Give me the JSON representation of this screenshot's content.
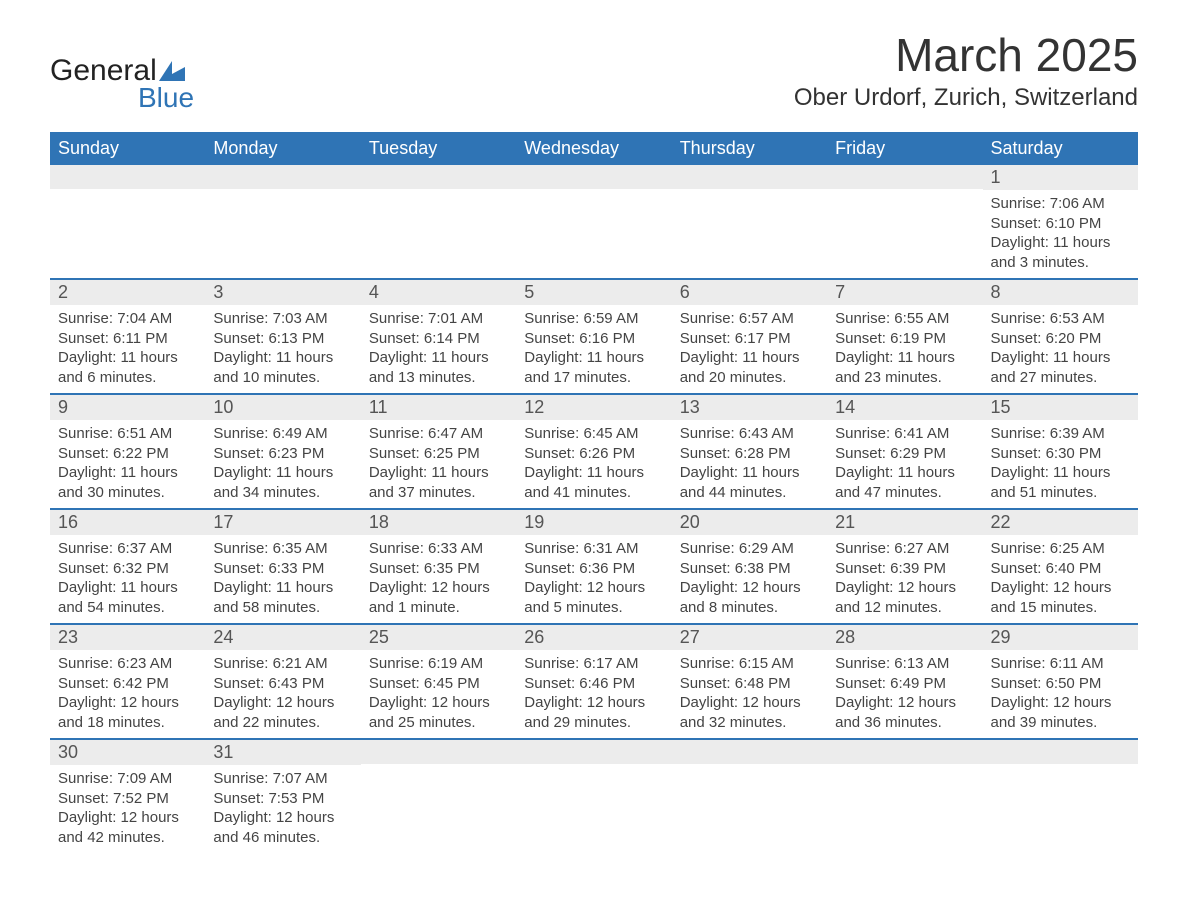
{
  "brand": {
    "word1": "General",
    "word2": "Blue",
    "icon_color": "#2f74b5",
    "text_color": "#222222"
  },
  "title": "March 2025",
  "location": "Ober Urdorf, Zurich, Switzerland",
  "colors": {
    "header_bg": "#2f74b5",
    "header_text": "#ffffff",
    "row_divider": "#2f74b5",
    "daynum_bg": "#ececec",
    "body_text": "#444444",
    "page_bg": "#ffffff"
  },
  "weekdays": [
    "Sunday",
    "Monday",
    "Tuesday",
    "Wednesday",
    "Thursday",
    "Friday",
    "Saturday"
  ],
  "weeks": [
    [
      {
        "num": "",
        "sunrise": "",
        "sunset": "",
        "daylight": ""
      },
      {
        "num": "",
        "sunrise": "",
        "sunset": "",
        "daylight": ""
      },
      {
        "num": "",
        "sunrise": "",
        "sunset": "",
        "daylight": ""
      },
      {
        "num": "",
        "sunrise": "",
        "sunset": "",
        "daylight": ""
      },
      {
        "num": "",
        "sunrise": "",
        "sunset": "",
        "daylight": ""
      },
      {
        "num": "",
        "sunrise": "",
        "sunset": "",
        "daylight": ""
      },
      {
        "num": "1",
        "sunrise": "Sunrise: 7:06 AM",
        "sunset": "Sunset: 6:10 PM",
        "daylight": "Daylight: 11 hours and 3 minutes."
      }
    ],
    [
      {
        "num": "2",
        "sunrise": "Sunrise: 7:04 AM",
        "sunset": "Sunset: 6:11 PM",
        "daylight": "Daylight: 11 hours and 6 minutes."
      },
      {
        "num": "3",
        "sunrise": "Sunrise: 7:03 AM",
        "sunset": "Sunset: 6:13 PM",
        "daylight": "Daylight: 11 hours and 10 minutes."
      },
      {
        "num": "4",
        "sunrise": "Sunrise: 7:01 AM",
        "sunset": "Sunset: 6:14 PM",
        "daylight": "Daylight: 11 hours and 13 minutes."
      },
      {
        "num": "5",
        "sunrise": "Sunrise: 6:59 AM",
        "sunset": "Sunset: 6:16 PM",
        "daylight": "Daylight: 11 hours and 17 minutes."
      },
      {
        "num": "6",
        "sunrise": "Sunrise: 6:57 AM",
        "sunset": "Sunset: 6:17 PM",
        "daylight": "Daylight: 11 hours and 20 minutes."
      },
      {
        "num": "7",
        "sunrise": "Sunrise: 6:55 AM",
        "sunset": "Sunset: 6:19 PM",
        "daylight": "Daylight: 11 hours and 23 minutes."
      },
      {
        "num": "8",
        "sunrise": "Sunrise: 6:53 AM",
        "sunset": "Sunset: 6:20 PM",
        "daylight": "Daylight: 11 hours and 27 minutes."
      }
    ],
    [
      {
        "num": "9",
        "sunrise": "Sunrise: 6:51 AM",
        "sunset": "Sunset: 6:22 PM",
        "daylight": "Daylight: 11 hours and 30 minutes."
      },
      {
        "num": "10",
        "sunrise": "Sunrise: 6:49 AM",
        "sunset": "Sunset: 6:23 PM",
        "daylight": "Daylight: 11 hours and 34 minutes."
      },
      {
        "num": "11",
        "sunrise": "Sunrise: 6:47 AM",
        "sunset": "Sunset: 6:25 PM",
        "daylight": "Daylight: 11 hours and 37 minutes."
      },
      {
        "num": "12",
        "sunrise": "Sunrise: 6:45 AM",
        "sunset": "Sunset: 6:26 PM",
        "daylight": "Daylight: 11 hours and 41 minutes."
      },
      {
        "num": "13",
        "sunrise": "Sunrise: 6:43 AM",
        "sunset": "Sunset: 6:28 PM",
        "daylight": "Daylight: 11 hours and 44 minutes."
      },
      {
        "num": "14",
        "sunrise": "Sunrise: 6:41 AM",
        "sunset": "Sunset: 6:29 PM",
        "daylight": "Daylight: 11 hours and 47 minutes."
      },
      {
        "num": "15",
        "sunrise": "Sunrise: 6:39 AM",
        "sunset": "Sunset: 6:30 PM",
        "daylight": "Daylight: 11 hours and 51 minutes."
      }
    ],
    [
      {
        "num": "16",
        "sunrise": "Sunrise: 6:37 AM",
        "sunset": "Sunset: 6:32 PM",
        "daylight": "Daylight: 11 hours and 54 minutes."
      },
      {
        "num": "17",
        "sunrise": "Sunrise: 6:35 AM",
        "sunset": "Sunset: 6:33 PM",
        "daylight": "Daylight: 11 hours and 58 minutes."
      },
      {
        "num": "18",
        "sunrise": "Sunrise: 6:33 AM",
        "sunset": "Sunset: 6:35 PM",
        "daylight": "Daylight: 12 hours and 1 minute."
      },
      {
        "num": "19",
        "sunrise": "Sunrise: 6:31 AM",
        "sunset": "Sunset: 6:36 PM",
        "daylight": "Daylight: 12 hours and 5 minutes."
      },
      {
        "num": "20",
        "sunrise": "Sunrise: 6:29 AM",
        "sunset": "Sunset: 6:38 PM",
        "daylight": "Daylight: 12 hours and 8 minutes."
      },
      {
        "num": "21",
        "sunrise": "Sunrise: 6:27 AM",
        "sunset": "Sunset: 6:39 PM",
        "daylight": "Daylight: 12 hours and 12 minutes."
      },
      {
        "num": "22",
        "sunrise": "Sunrise: 6:25 AM",
        "sunset": "Sunset: 6:40 PM",
        "daylight": "Daylight: 12 hours and 15 minutes."
      }
    ],
    [
      {
        "num": "23",
        "sunrise": "Sunrise: 6:23 AM",
        "sunset": "Sunset: 6:42 PM",
        "daylight": "Daylight: 12 hours and 18 minutes."
      },
      {
        "num": "24",
        "sunrise": "Sunrise: 6:21 AM",
        "sunset": "Sunset: 6:43 PM",
        "daylight": "Daylight: 12 hours and 22 minutes."
      },
      {
        "num": "25",
        "sunrise": "Sunrise: 6:19 AM",
        "sunset": "Sunset: 6:45 PM",
        "daylight": "Daylight: 12 hours and 25 minutes."
      },
      {
        "num": "26",
        "sunrise": "Sunrise: 6:17 AM",
        "sunset": "Sunset: 6:46 PM",
        "daylight": "Daylight: 12 hours and 29 minutes."
      },
      {
        "num": "27",
        "sunrise": "Sunrise: 6:15 AM",
        "sunset": "Sunset: 6:48 PM",
        "daylight": "Daylight: 12 hours and 32 minutes."
      },
      {
        "num": "28",
        "sunrise": "Sunrise: 6:13 AM",
        "sunset": "Sunset: 6:49 PM",
        "daylight": "Daylight: 12 hours and 36 minutes."
      },
      {
        "num": "29",
        "sunrise": "Sunrise: 6:11 AM",
        "sunset": "Sunset: 6:50 PM",
        "daylight": "Daylight: 12 hours and 39 minutes."
      }
    ],
    [
      {
        "num": "30",
        "sunrise": "Sunrise: 7:09 AM",
        "sunset": "Sunset: 7:52 PM",
        "daylight": "Daylight: 12 hours and 42 minutes."
      },
      {
        "num": "31",
        "sunrise": "Sunrise: 7:07 AM",
        "sunset": "Sunset: 7:53 PM",
        "daylight": "Daylight: 12 hours and 46 minutes."
      },
      {
        "num": "",
        "sunrise": "",
        "sunset": "",
        "daylight": ""
      },
      {
        "num": "",
        "sunrise": "",
        "sunset": "",
        "daylight": ""
      },
      {
        "num": "",
        "sunrise": "",
        "sunset": "",
        "daylight": ""
      },
      {
        "num": "",
        "sunrise": "",
        "sunset": "",
        "daylight": ""
      },
      {
        "num": "",
        "sunrise": "",
        "sunset": "",
        "daylight": ""
      }
    ]
  ]
}
